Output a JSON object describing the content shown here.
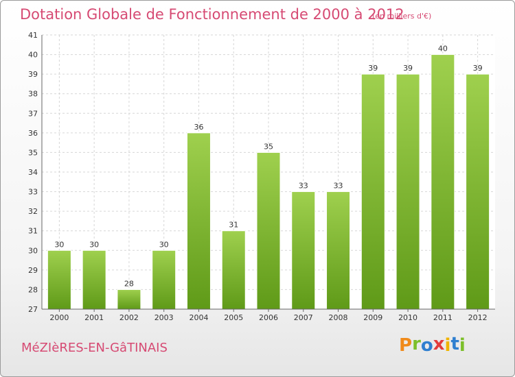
{
  "chart_data": {
    "type": "bar",
    "title": "Dotation Globale de Fonctionnement de 2000 à 2012",
    "subtitle": "(en milliers d'€)",
    "categories": [
      "2000",
      "2001",
      "2002",
      "2003",
      "2004",
      "2005",
      "2006",
      "2007",
      "2008",
      "2009",
      "2010",
      "2011",
      "2012"
    ],
    "values": [
      30,
      30,
      28,
      30,
      36,
      31,
      35,
      33,
      33,
      39,
      39,
      40,
      39
    ],
    "ylim": [
      27,
      41
    ],
    "yticks": [
      27,
      28,
      29,
      30,
      31,
      32,
      33,
      34,
      35,
      36,
      37,
      38,
      39,
      40,
      41
    ],
    "grid": true,
    "bar_color_top": "#9fd04e",
    "bar_color_bottom": "#5f9a18"
  },
  "footer": {
    "place_name": "MéZIèRES-EN-GâTINAIS",
    "logo_letters": [
      "P",
      "r",
      "o",
      "x",
      "i",
      "t",
      "i"
    ],
    "logo_colors": [
      "#f08a1a",
      "#7cbf2a",
      "#2f7fd0",
      "#e23c3c",
      "#f0b400",
      "#2f7fd0",
      "#7cbf2a"
    ]
  }
}
